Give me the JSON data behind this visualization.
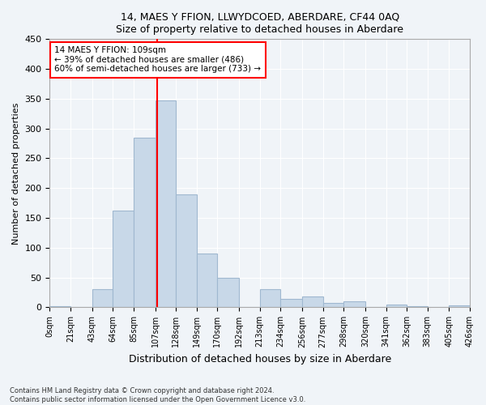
{
  "title": "14, MAES Y FFION, LLWYDCOED, ABERDARE, CF44 0AQ",
  "subtitle": "Size of property relative to detached houses in Aberdare",
  "xlabel": "Distribution of detached houses by size in Aberdare",
  "ylabel": "Number of detached properties",
  "bar_color": "#c8d8e8",
  "bar_edge_color": "#a0b8d0",
  "bins": [
    "0sqm",
    "21sqm",
    "43sqm",
    "64sqm",
    "85sqm",
    "107sqm",
    "128sqm",
    "149sqm",
    "170sqm",
    "192sqm",
    "213sqm",
    "234sqm",
    "256sqm",
    "277sqm",
    "298sqm",
    "320sqm",
    "341sqm",
    "362sqm",
    "383sqm",
    "405sqm",
    "426sqm"
  ],
  "bin_edges": [
    0,
    21,
    43,
    64,
    85,
    107,
    128,
    149,
    170,
    192,
    213,
    234,
    256,
    277,
    298,
    320,
    341,
    362,
    383,
    405,
    426
  ],
  "values": [
    2,
    0,
    30,
    162,
    285,
    347,
    190,
    90,
    50,
    0,
    30,
    14,
    18,
    7,
    10,
    0,
    5,
    2,
    0,
    3
  ],
  "vline_x": 109,
  "annotation_text": "14 MAES Y FFION: 109sqm\n← 39% of detached houses are smaller (486)\n60% of semi-detached houses are larger (733) →",
  "annotation_box_color": "white",
  "annotation_border_color": "red",
  "vline_color": "red",
  "ylim": [
    0,
    450
  ],
  "yticks": [
    0,
    50,
    100,
    150,
    200,
    250,
    300,
    350,
    400,
    450
  ],
  "footer": "Contains HM Land Registry data © Crown copyright and database right 2024.\nContains public sector information licensed under the Open Government Licence v3.0.",
  "bg_color": "#f0f4f8",
  "grid_color": "#ffffff"
}
